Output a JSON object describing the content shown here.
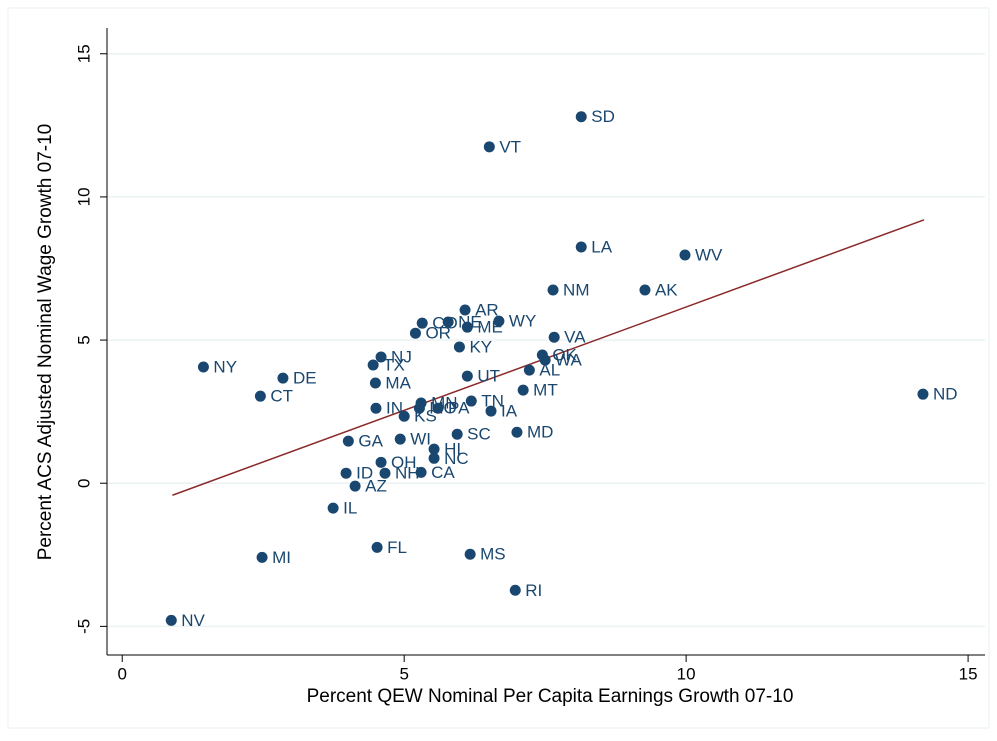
{
  "chart_data": {
    "type": "scatter",
    "xlabel": "Percent QEW Nominal Per Capita Earnings Growth 07-10",
    "ylabel": "Percent ACS Adjusted Nominal Wage Growth 07-10",
    "xlim": [
      -0.27,
      15.3
    ],
    "ylim": [
      -6.0,
      15.9
    ],
    "xticks": [
      0,
      5,
      10,
      15
    ],
    "yticks": [
      -5,
      0,
      5,
      10,
      15
    ],
    "grid": true,
    "color": "#1a476f",
    "labels": [
      "SD",
      "VT",
      "LA",
      "WV",
      "NM",
      "AK",
      "AR",
      "WY",
      "CO",
      "NE",
      "ME",
      "OR",
      "VA",
      "KY",
      "OK",
      "WA",
      "NJ",
      "NY",
      "TX",
      "AL",
      "DE",
      "UT",
      "MA",
      "MT",
      "CT",
      "ND",
      "IN",
      "MN",
      "MO",
      "PA",
      "TN",
      "IA",
      "KS",
      "SC",
      "MD",
      "WI",
      "GA",
      "HI",
      "NC",
      "OH",
      "ID",
      "NH",
      "CA",
      "AZ",
      "IL",
      "FL",
      "MS",
      "MI",
      "RI",
      "NV"
    ],
    "x": [
      8.14,
      6.51,
      8.14,
      9.98,
      7.64,
      9.27,
      6.08,
      6.68,
      5.32,
      5.78,
      6.12,
      5.2,
      7.66,
      5.98,
      7.45,
      7.5,
      4.59,
      1.44,
      4.45,
      7.22,
      2.85,
      6.12,
      4.49,
      7.11,
      2.45,
      14.2,
      4.5,
      5.3,
      5.27,
      5.6,
      6.19,
      6.54,
      5.0,
      5.94,
      7.0,
      4.93,
      4.01,
      5.53,
      5.53,
      4.59,
      3.97,
      4.66,
      5.3,
      4.13,
      3.74,
      4.52,
      6.17,
      2.48,
      6.97,
      0.87
    ],
    "y": [
      12.8,
      11.75,
      8.25,
      7.97,
      6.75,
      6.75,
      6.05,
      5.66,
      5.59,
      5.63,
      5.45,
      5.24,
      5.1,
      4.76,
      4.48,
      4.3,
      4.41,
      4.06,
      4.13,
      3.95,
      3.67,
      3.74,
      3.5,
      3.25,
      3.04,
      3.11,
      2.62,
      2.8,
      2.62,
      2.62,
      2.87,
      2.52,
      2.34,
      1.71,
      1.78,
      1.54,
      1.47,
      1.19,
      0.87,
      0.73,
      0.35,
      0.35,
      0.38,
      -0.1,
      -0.87,
      -2.24,
      -2.48,
      -2.59,
      -3.74,
      -4.79
    ],
    "fit_line": {
      "color": "#8b2a2a",
      "x": [
        0.89,
        14.22
      ],
      "y": [
        -0.42,
        9.2
      ]
    }
  }
}
